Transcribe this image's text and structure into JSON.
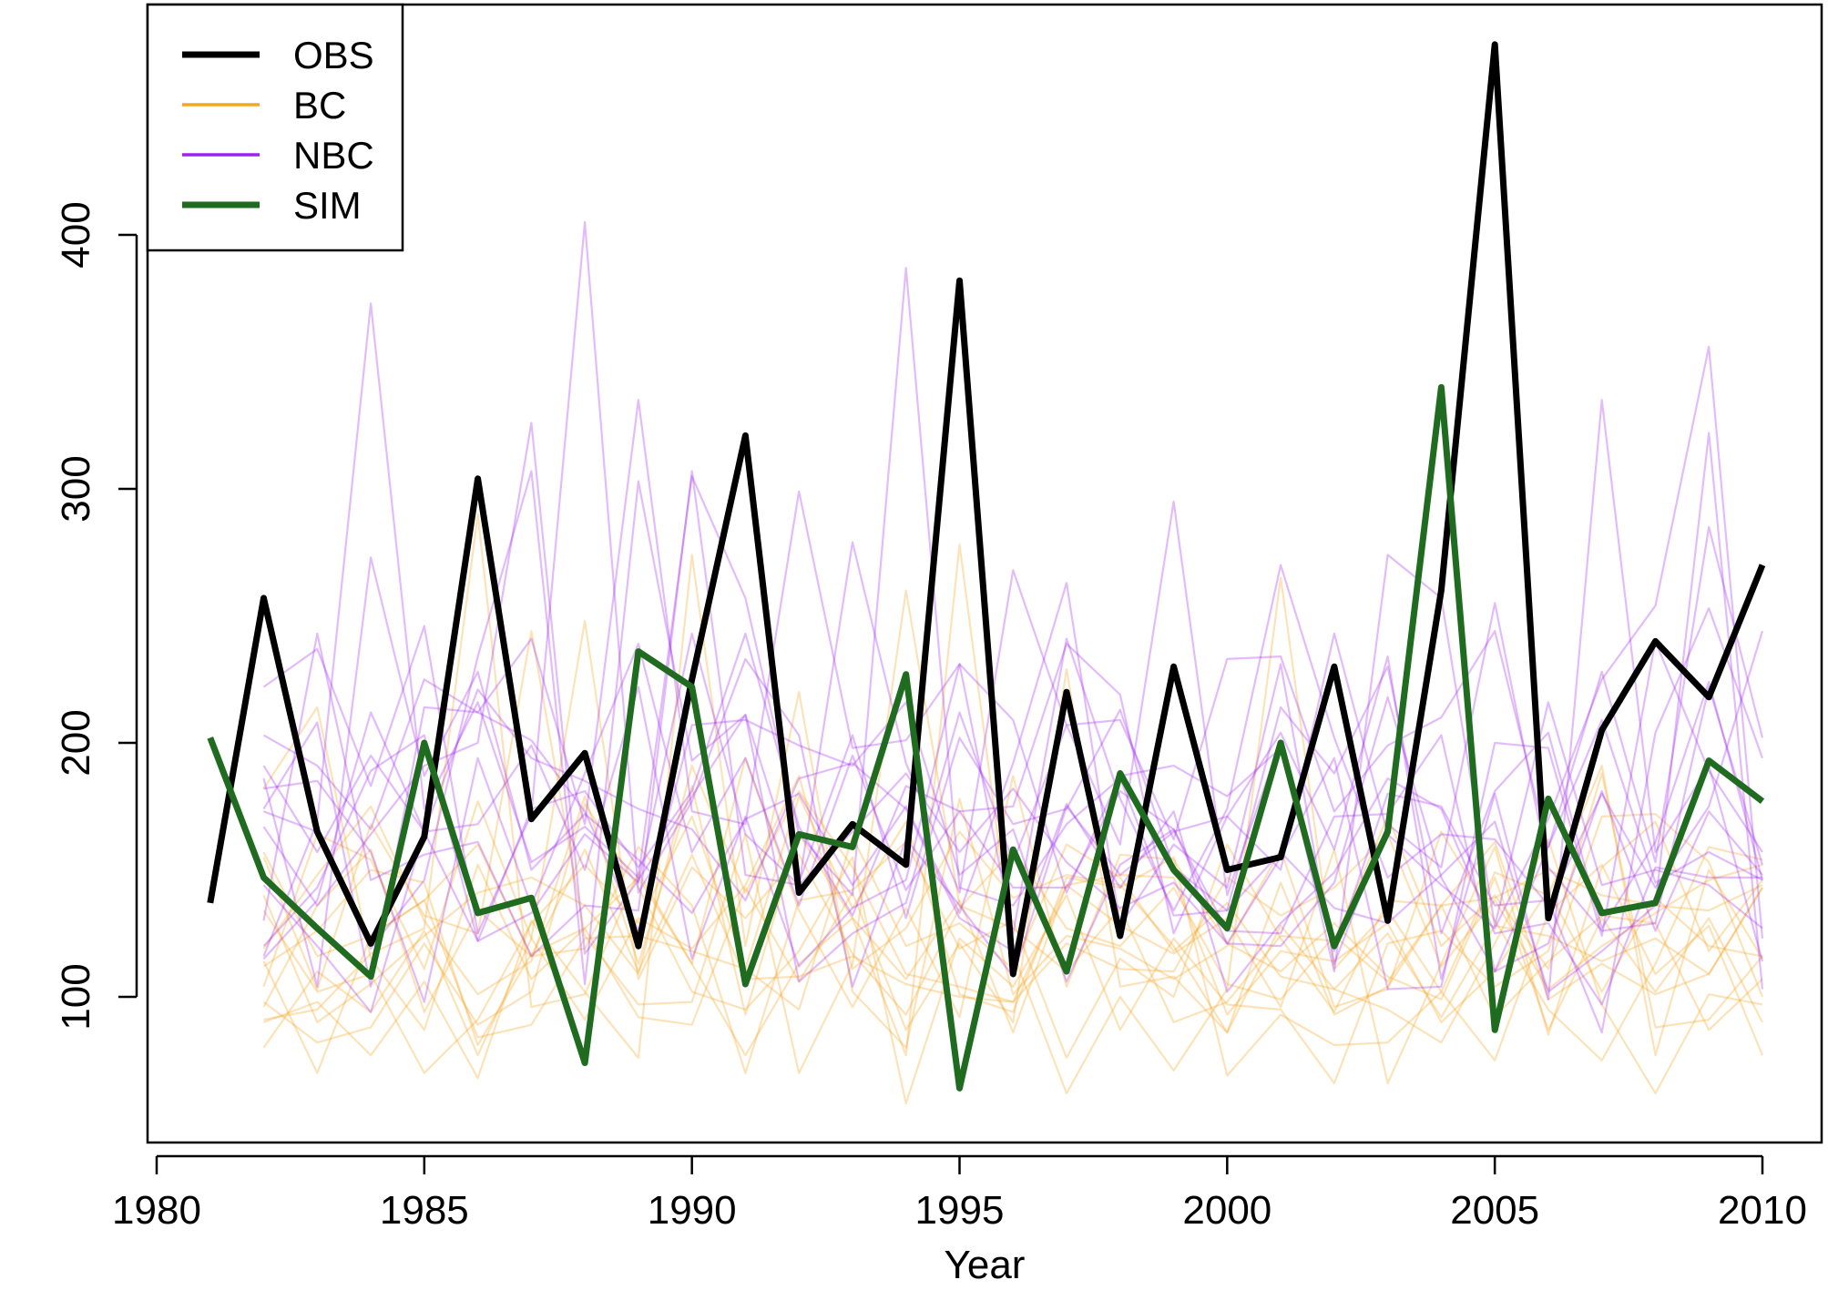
{
  "chart_data": {
    "type": "line",
    "title": "",
    "xlabel": "Year",
    "ylabel": "",
    "xlim": [
      1980,
      2011
    ],
    "ylim": [
      45,
      490
    ],
    "x_ticks": [
      1980,
      1985,
      1990,
      1995,
      2000,
      2005,
      2010
    ],
    "y_ticks": [
      100,
      200,
      300,
      400
    ],
    "x_tick_labels": [
      "1980",
      "1985",
      "1990",
      "1995",
      "2000",
      "2005",
      "2010"
    ],
    "y_tick_labels": [
      "100",
      "200",
      "300",
      "400"
    ],
    "grid": false,
    "legend_position": "top-left",
    "legend": [
      {
        "name": "OBS",
        "color": "#000000"
      },
      {
        "name": "BC",
        "color": "#f5a623"
      },
      {
        "name": "NBC",
        "color": "#a020f0"
      },
      {
        "name": "SIM",
        "color": "#1f6b1f"
      }
    ],
    "series": [
      {
        "name": "OBS",
        "color": "#000000",
        "kind": "main",
        "x": [
          1981,
          1982,
          1983,
          1984,
          1985,
          1986,
          1987,
          1988,
          1989,
          1990,
          1991,
          1992,
          1993,
          1994,
          1995,
          1996,
          1997,
          1998,
          1999,
          2000,
          2001,
          2002,
          2003,
          2004,
          2005,
          2006,
          2007,
          2008,
          2009,
          2010
        ],
        "values": [
          137,
          257,
          165,
          121,
          163,
          304,
          170,
          196,
          120,
          225,
          321,
          141,
          168,
          152,
          382,
          109,
          220,
          124,
          230,
          150,
          155,
          230,
          130,
          260,
          475,
          131,
          205,
          240,
          218,
          270
        ]
      },
      {
        "name": "SIM",
        "color": "#1f6b1f",
        "kind": "main",
        "x": [
          1981,
          1982,
          1983,
          1984,
          1985,
          1986,
          1987,
          1988,
          1989,
          1990,
          1991,
          1992,
          1993,
          1994,
          1995,
          1996,
          1997,
          1998,
          1999,
          2000,
          2001,
          2002,
          2003,
          2004,
          2005,
          2006,
          2007,
          2008,
          2009,
          2010
        ],
        "values": [
          202,
          147,
          127,
          108,
          200,
          133,
          139,
          74,
          236,
          222,
          105,
          164,
          159,
          227,
          64,
          158,
          110,
          188,
          150,
          127,
          200,
          120,
          165,
          340,
          87,
          178,
          133,
          137,
          193,
          177
        ]
      }
    ],
    "ensembles": [
      {
        "name": "BC",
        "color": "#f5a623",
        "kind": "ensemble",
        "x": [
          1982,
          1983,
          1984,
          1985,
          1986,
          1987,
          1988,
          1989,
          1990,
          1991,
          1992,
          1993,
          1994,
          1995,
          1996,
          1997,
          1998,
          1999,
          2000,
          2001,
          2002,
          2003,
          2004,
          2005,
          2006,
          2007,
          2008,
          2009,
          2010
        ],
        "members": [
          [
            80,
            110,
            94,
            126,
            77,
            123,
            248,
            107,
            151,
            131,
            156,
            117,
            93,
            135,
            158,
            127,
            120,
            143,
            105,
            99,
            124,
            106,
            136,
            92,
            114,
            132,
            129,
            87,
            107
          ],
          [
            119,
            148,
            175,
            130,
            101,
            114,
            179,
            113,
            183,
            93,
            164,
            131,
            107,
            138,
            86,
            144,
            148,
            147,
            93,
            118,
            114,
            129,
            90,
            110,
            142,
            102,
            139,
            120,
            116
          ],
          [
            140,
            90,
            105,
            124,
            141,
            147,
            136,
            109,
            191,
            141,
            181,
            151,
            109,
            104,
            98,
            121,
            111,
            110,
            147,
            132,
            143,
            164,
            112,
            138,
            103,
            120,
            133,
            146,
            152
          ],
          [
            104,
            164,
            154,
            111,
            177,
            123,
            91,
            131,
            119,
            144,
            187,
            111,
            127,
            165,
            139,
            148,
            144,
            120,
            86,
            145,
            93,
            104,
            136,
            139,
            150,
            140,
            136,
            134,
            144
          ],
          [
            134,
            102,
            109,
            70,
            91,
            129,
            152,
            129,
            171,
            111,
            95,
            163,
            120,
            129,
            111,
            160,
            147,
            118,
            137,
            108,
            103,
            125,
            92,
            128,
            124,
            114,
            123,
            109,
            143
          ],
          [
            112,
            126,
            150,
            145,
            81,
            117,
            127,
            147,
            113,
            194,
            134,
            96,
            135,
            92,
            187,
            104,
            156,
            154,
            121,
            110,
            129,
            108,
            99,
            147,
            87,
            131,
            102,
            131,
            90
          ],
          [
            114,
            70,
            124,
            138,
            160,
            116,
            119,
            159,
            136,
            70,
            138,
            142,
            161,
            119,
            130,
            76,
            115,
            100,
            160,
            123,
            94,
            138,
            136,
            161,
            99,
            113,
            101,
            109,
            143
          ],
          [
            90,
            98,
            77,
            106,
            68,
            130,
            102,
            76,
            274,
            120,
            220,
            102,
            80,
            178,
            101,
            124,
            119,
            107,
            120,
            158,
            96,
            103,
            165,
            130,
            95,
            75,
            113,
            159,
            154
          ],
          [
            155,
            103,
            168,
            132,
            125,
            244,
            124,
            97,
            98,
            164,
            70,
            113,
            260,
            136,
            127,
            110,
            135,
            90,
            98,
            124,
            122,
            171,
            120,
            140,
            111,
            171,
            172,
            153,
            100
          ],
          [
            91,
            95,
            117,
            127,
            290,
            96,
            101,
            149,
            113,
            77,
            113,
            131,
            77,
            278,
            117,
            62,
            100,
            71,
            103,
            265,
            111,
            134,
            102,
            75,
            133,
            152,
            109,
            128,
            77
          ],
          [
            182,
            214,
            115,
            87,
            152,
            107,
            127,
            92,
            89,
            143,
            106,
            141,
            87,
            121,
            90,
            229,
            104,
            108,
            86,
            128,
            103,
            95,
            82,
            121,
            162,
            97,
            62,
            101,
            97
          ],
          [
            98,
            82,
            88,
            121,
            89,
            102,
            176,
            143,
            102,
            95,
            118,
            155,
            58,
            123,
            104,
            140,
            87,
            123,
            97,
            95,
            66,
            121,
            126,
            104,
            118,
            188,
            88,
            91,
            116
          ],
          [
            157,
            116,
            124,
            138,
            84,
            89,
            123,
            124,
            118,
            111,
            179,
            135,
            169,
            101,
            94,
            147,
            143,
            155,
            69,
            93,
            81,
            82,
            102,
            149,
            140,
            191,
            77,
            150,
            115
          ],
          [
            96,
            136,
            158,
            94,
            134,
            116,
            158,
            110,
            156,
            107,
            108,
            116,
            105,
            100,
            98,
            144,
            128,
            117,
            131,
            96,
            158,
            66,
            113,
            159,
            85,
            151,
            169,
            118,
            146
          ]
        ]
      },
      {
        "name": "NBC",
        "color": "#a020f0",
        "kind": "ensemble",
        "x": [
          1982,
          1983,
          1984,
          1985,
          1986,
          1987,
          1988,
          1989,
          1990,
          1991,
          1992,
          1993,
          1994,
          1995,
          1996,
          1997,
          1998,
          1999,
          2000,
          2001,
          2002,
          2003,
          2004,
          2005,
          2006,
          2007,
          2008,
          2009,
          2010
        ],
        "members": [
          [
            116,
            169,
            373,
            174,
            216,
            153,
            167,
            147,
            305,
            257,
            164,
            140,
            387,
            143,
            136,
            168,
            186,
            132,
            134,
            214,
            188,
            230,
            125,
            181,
            204,
            127,
            161,
            224,
            146
          ],
          [
            173,
            165,
            119,
            146,
            234,
            307,
            105,
            303,
            193,
            211,
            145,
            203,
            131,
            202,
            168,
            174,
            213,
            151,
            134,
            157,
            135,
            129,
            148,
            169,
            102,
            118,
            136,
            322,
            103
          ],
          [
            222,
            237,
            183,
            246,
            125,
            172,
            405,
            141,
            177,
            233,
            203,
            104,
            162,
            136,
            108,
            175,
            148,
            165,
            171,
            204,
            158,
            234,
            107,
            180,
            99,
            335,
            157,
            191,
            114
          ],
          [
            203,
            191,
            166,
            225,
            212,
            241,
            168,
            335,
            173,
            168,
            299,
            198,
            201,
            231,
            125,
            241,
            178,
            134,
            174,
            270,
            202,
            147,
            164,
            162,
            136,
            180,
            143,
            175,
            244
          ],
          [
            130,
            243,
            146,
            156,
            161,
            116,
            136,
            134,
            307,
            148,
            144,
            279,
            192,
            141,
            268,
            207,
            209,
            162,
            233,
            234,
            173,
            199,
            210,
            244,
            159,
            228,
            153,
            285,
            202
          ],
          [
            191,
            157,
            195,
            165,
            122,
            174,
            181,
            151,
            181,
            243,
            167,
            132,
            183,
            173,
            175,
            239,
            219,
            125,
            171,
            150,
            243,
            164,
            144,
            127,
            170,
            225,
            254,
            356,
            123
          ],
          [
            167,
            136,
            164,
            191,
            200,
            326,
            117,
            146,
            179,
            211,
            106,
            125,
            137,
            212,
            153,
            207,
            160,
            295,
            140,
            201,
            110,
            274,
            257,
            128,
            216,
            144,
            150,
            144,
            127
          ],
          [
            186,
            104,
            273,
            187,
            228,
            150,
            172,
            154,
            133,
            170,
            180,
            144,
            175,
            133,
            192,
            263,
            128,
            160,
            143,
            231,
            113,
            168,
            151,
            255,
            151,
            126,
            129,
            222,
            152
          ],
          [
            174,
            208,
            104,
            214,
            212,
            201,
            173,
            126,
            207,
            209,
            199,
            191,
            216,
            148,
            166,
            106,
            152,
            166,
            121,
            155,
            194,
            103,
            104,
            200,
            198,
            124,
            240,
            189,
            157
          ],
          [
            144,
            120,
            94,
            165,
            221,
            194,
            185,
            174,
            166,
            138,
            186,
            192,
            174,
            131,
            118,
            176,
            143,
            173,
            102,
            129,
            149,
            186,
            174,
            125,
            129,
            97,
            151,
            147,
            147
          ],
          [
            120,
            143,
            189,
            203,
            122,
            133,
            164,
            145,
            243,
            164,
            144,
            165,
            188,
            157,
            182,
            153,
            135,
            145,
            121,
            120,
            145,
            218,
            147,
            110,
            159,
            209,
            145,
            157,
            146
          ],
          [
            115,
            138,
            212,
            165,
            168,
            199,
            150,
            222,
            115,
            171,
            112,
            135,
            146,
            231,
            209,
            141,
            187,
            191,
            179,
            198,
            118,
            180,
            175,
            136,
            138,
            86,
            204,
            253,
            194
          ],
          [
            182,
            185,
            157,
            98,
            194,
            136,
            188,
            239,
            157,
            194,
            136,
            195,
            142,
            173,
            143,
            143,
            181,
            166,
            126,
            125,
            171,
            172,
            203,
            110,
            121,
            181,
            126,
            173,
            148
          ]
        ]
      }
    ]
  }
}
